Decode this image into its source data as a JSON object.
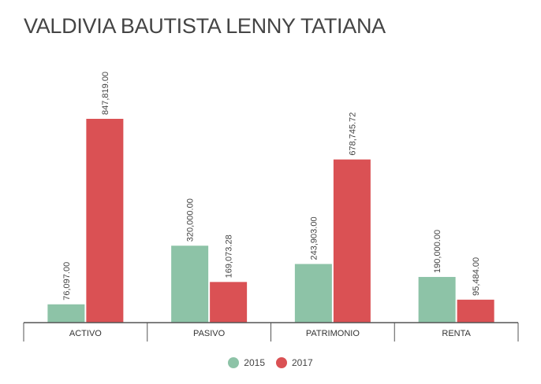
{
  "title": "VALDIVIA BAUTISTA LENNY TATIANA",
  "chart_data": {
    "type": "bar",
    "title": "VALDIVIA BAUTISTA LENNY TATIANA",
    "categories": [
      "ACTIVO",
      "PASIVO",
      "PATRIMONIO",
      "RENTA"
    ],
    "series": [
      {
        "name": "2015",
        "color": "#8dc3a7",
        "values": [
          76097.0,
          320000.0,
          243903.0,
          190000.0
        ],
        "labels": [
          "76,097.00",
          "320,000.00",
          "243,903.00",
          "190,000.00"
        ]
      },
      {
        "name": "2017",
        "color": "#da5154",
        "values": [
          847819.0,
          169073.28,
          678745.72,
          95484.0
        ],
        "labels": [
          "847,819.00",
          "169,073.28",
          "678,745.72",
          "95,484.00"
        ]
      }
    ],
    "ylim": [
      0,
      847819
    ],
    "grid": false,
    "legend": "bottom"
  }
}
